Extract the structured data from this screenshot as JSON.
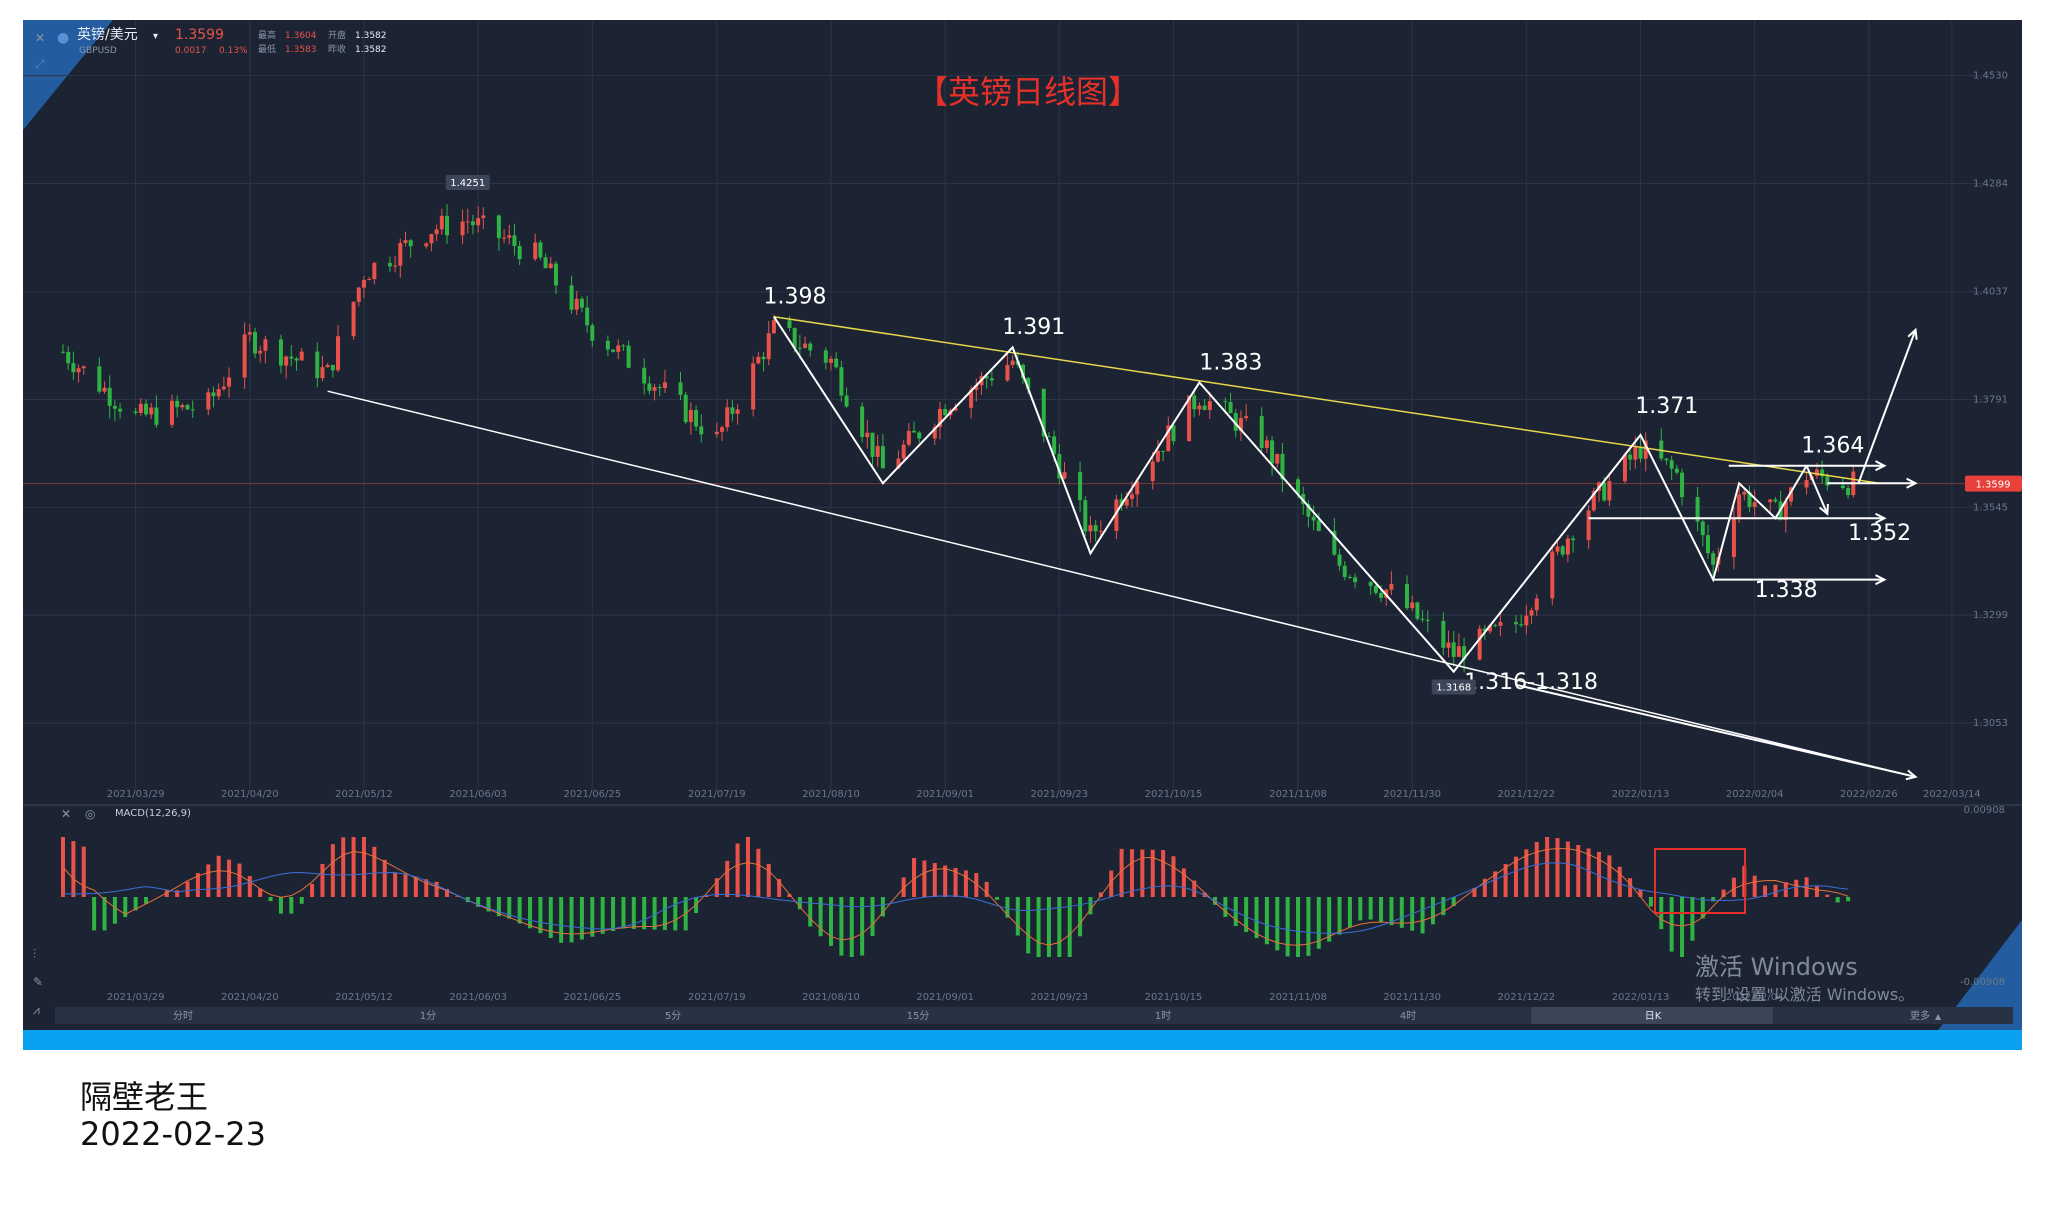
{
  "header": {
    "symbol_cn": "英镑/美元",
    "symbol_code": "GBPUSD",
    "last": "1.3599",
    "change": "0.0017",
    "change_pct": "0.13%",
    "high_label": "最高",
    "high": "1.3604",
    "open_label": "开盘",
    "open": "1.3582",
    "low_label": "最低",
    "low": "1.3583",
    "prev_label": "昨收",
    "prev": "1.3582"
  },
  "chart_title": "【英镑日线图】",
  "current_price_tag": "1.3599",
  "y_ticks": [
    "1.4530",
    "1.4284",
    "1.4037",
    "1.3791",
    "1.3545",
    "1.3299",
    "1.3053"
  ],
  "x_ticks": [
    "2021/03/29",
    "2021/04/20",
    "2021/05/12",
    "2021/06/03",
    "2021/06/25",
    "2021/07/19",
    "2021/08/10",
    "2021/09/01",
    "2021/09/23",
    "2021/10/15",
    "2021/11/08",
    "2021/11/30",
    "2021/12/22",
    "2022/01/13",
    "2022/02/04",
    "2022/02/26",
    "2022/03/14"
  ],
  "macd": {
    "label": "MACD(12,26,9)",
    "y_top": "0.00908",
    "y_bottom": "-0.00908",
    "x_ticks": [
      "2021/03/29",
      "2021/04/20",
      "2021/05/12",
      "2021/06/03",
      "2021/06/25",
      "2021/07/19",
      "2021/08/10",
      "2021/09/01",
      "2021/09/23",
      "2021/10/15",
      "2021/11/08",
      "2021/11/30",
      "2021/12/22",
      "2022/01/13",
      "2022/02/04"
    ]
  },
  "timeframes": {
    "items": [
      "分时",
      "1分",
      "5分",
      "15分",
      "1时",
      "4时",
      "日K"
    ],
    "more": "更多",
    "active": "日K"
  },
  "watermark": {
    "line1": "激活 Windows",
    "line2": "转到\"设置\"以激活 Windows。"
  },
  "footer": {
    "author": "隔壁老王",
    "date": "2022-02-23"
  },
  "colors": {
    "background": "#1c2434",
    "up": "#e8524a",
    "down": "#2fb344",
    "title": "#e8302a",
    "trendline": "#e6d84a",
    "annotation": "#ffffff",
    "accent": "#0aa2f0"
  },
  "chart_data": {
    "type": "candlestick",
    "title": "【英镑日线图】",
    "x_range": [
      "2021-03-15",
      "2022-03-20"
    ],
    "y_range": [
      1.29,
      1.46
    ],
    "max_label": {
      "date": "2021-06-01",
      "value": 1.4251,
      "text": "1.4251"
    },
    "min_label": {
      "date": "2021-12-08",
      "value": 1.3168,
      "text": "1.3168"
    },
    "current_price": 1.3599,
    "swing_path": [
      {
        "date": "2021-07-30",
        "value": 1.398
      },
      {
        "date": "2021-08-20",
        "value": 1.36
      },
      {
        "date": "2021-09-14",
        "value": 1.391
      },
      {
        "date": "2021-09-29",
        "value": 1.344
      },
      {
        "date": "2021-10-20",
        "value": 1.383
      },
      {
        "date": "2021-12-08",
        "value": 1.317
      },
      {
        "date": "2022-01-13",
        "value": 1.371
      },
      {
        "date": "2022-01-27",
        "value": 1.338
      },
      {
        "date": "2022-02-01",
        "value": 1.36
      },
      {
        "date": "2022-02-08",
        "value": 1.352
      },
      {
        "date": "2022-02-14",
        "value": 1.364
      }
    ],
    "annotations": [
      {
        "text": "1.398"
      },
      {
        "text": "1.391"
      },
      {
        "text": "1.383"
      },
      {
        "text": "1.371"
      },
      {
        "text": "1.364"
      },
      {
        "text": "1.352"
      },
      {
        "text": "1.338"
      },
      {
        "text": "1.316-1.318"
      }
    ],
    "trendlines": [
      {
        "name": "descending-resistance",
        "from": {
          "date": "2021-07-30",
          "value": 1.398
        },
        "to": {
          "date": "2022-02-28",
          "value": 1.36
        }
      },
      {
        "name": "descending-channel-lower",
        "from": {
          "date": "2021-05-05",
          "value": 1.381
        },
        "to": {
          "date": "2022-03-07",
          "value": 1.293
        }
      }
    ]
  }
}
